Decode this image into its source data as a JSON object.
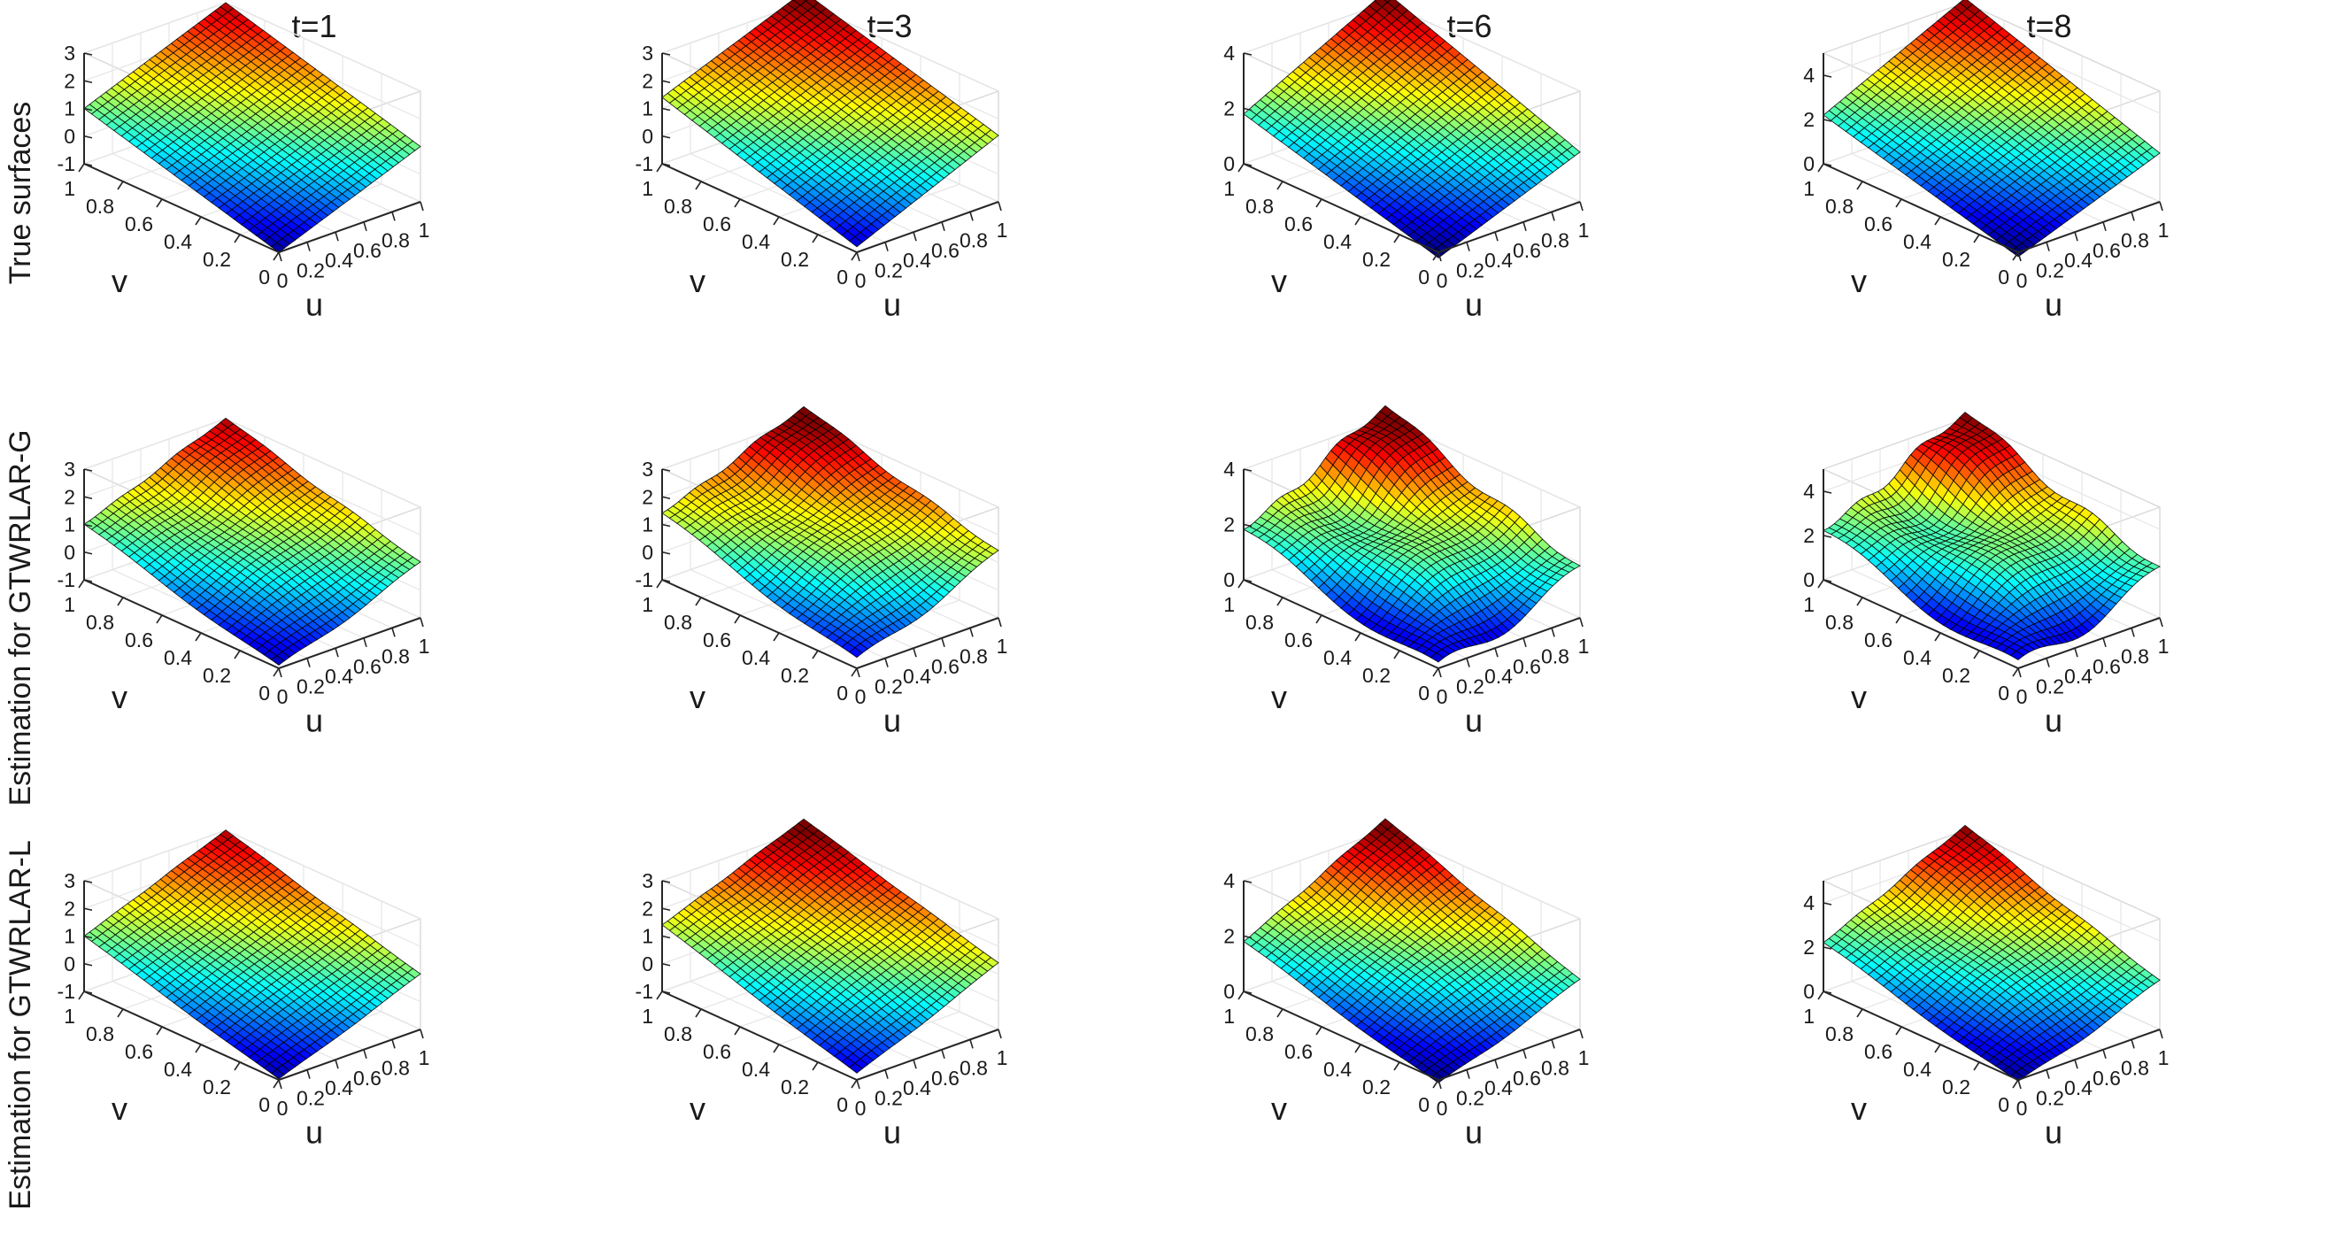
{
  "figure": {
    "column_titles": [
      "t=1",
      "t=3",
      "t=6",
      "t=8"
    ],
    "row_titles": [
      "True surfaces",
      "Estimation for GTWRLAR-G",
      "Estimation for GTWRLAR-L"
    ]
  },
  "colormap": "jet",
  "chart_data": {
    "type": "surface",
    "grid": {
      "rows": 3,
      "cols": 4
    },
    "mesh_resolution": 26,
    "axes": {
      "u": {
        "label": "u",
        "range": [
          0,
          1
        ],
        "ticks": [
          "0",
          "0.2",
          "0.4",
          "0.6",
          "0.8",
          "1"
        ]
      },
      "v": {
        "label": "v",
        "range": [
          0,
          1
        ],
        "ticks": [
          "0",
          "0.2",
          "0.4",
          "0.6",
          "0.8",
          "1"
        ]
      }
    },
    "columns": [
      {
        "title": "t=1",
        "zlim": [
          -1,
          3
        ],
        "zticks": [
          "-1",
          "0",
          "1",
          "2",
          "3"
        ],
        "corners": {
          "u0v0": -1.0,
          "u1v0": 1.0,
          "u0v1": 1.0,
          "u1v1": 3.0
        }
      },
      {
        "title": "t=3",
        "zlim": [
          -1,
          3
        ],
        "zticks": [
          "-1",
          "0",
          "1",
          "2",
          "3"
        ],
        "corners": {
          "u0v0": -0.8,
          "u1v0": 1.4,
          "u0v1": 1.4,
          "u1v1": 3.4
        }
      },
      {
        "title": "t=6",
        "zlim": [
          0,
          4
        ],
        "zticks": [
          "0",
          "2",
          "4"
        ],
        "corners": {
          "u0v0": -0.2,
          "u1v0": 1.8,
          "u0v1": 1.8,
          "u1v1": 4.4
        }
      },
      {
        "title": "t=8",
        "zlim": [
          0,
          5
        ],
        "zticks": [
          "0",
          "2",
          "4"
        ],
        "corners": {
          "u0v0": -0.2,
          "u1v0": 2.2,
          "u0v1": 2.2,
          "u1v1": 5.2
        }
      }
    ],
    "rows": [
      {
        "title": "True surfaces",
        "surface": "true",
        "perturbation": [
          0.0,
          0.0,
          0.0,
          0.0
        ]
      },
      {
        "title": "Estimation for GTWRLAR-G",
        "surface": "estimate",
        "perturbation": [
          0.15,
          0.25,
          0.55,
          0.75
        ]
      },
      {
        "title": "Estimation for GTWRLAR-L",
        "surface": "estimate",
        "perturbation": [
          0.05,
          0.06,
          0.12,
          0.18
        ]
      }
    ]
  }
}
